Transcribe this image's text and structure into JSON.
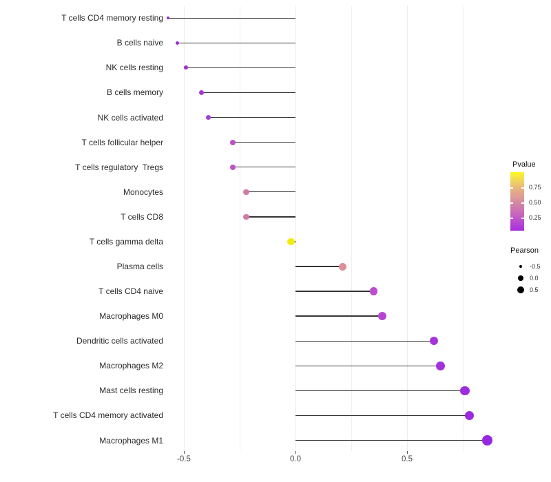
{
  "chart_data": {
    "type": "lollipop",
    "orientation": "horizontal",
    "title": "",
    "xlabel": "",
    "ylabel": "",
    "grid": "vertical-only",
    "x_axis": {
      "tick_labels": [
        "-0.5",
        "0.0",
        "0.5"
      ],
      "tick_values": [
        -0.5,
        0.0,
        0.5
      ],
      "gridline_values": [
        -0.5,
        -0.25,
        0.0,
        0.25,
        0.5,
        0.75
      ],
      "range": [
        -0.6,
        0.95
      ]
    },
    "points": [
      {
        "label": "T cells CD4 memory resting",
        "pearson": -0.57,
        "color": "#8F26CC",
        "size": 4
      },
      {
        "label": "B cells naive",
        "pearson": -0.53,
        "color": "#9A2ED1",
        "size": 5
      },
      {
        "label": "NK cells resting",
        "pearson": -0.49,
        "color": "#9C30D2",
        "size": 6
      },
      {
        "label": "B cells memory",
        "pearson": -0.42,
        "color": "#A63AD3",
        "size": 7
      },
      {
        "label": "NK cells activated",
        "pearson": -0.39,
        "color": "#A93ED2",
        "size": 7.5
      },
      {
        "label": "T cells follicular helper",
        "pearson": -0.28,
        "color": "#BD54C6",
        "size": 8
      },
      {
        "label": "T cells regulatory  Tregs",
        "pearson": -0.28,
        "color": "#BD54C6",
        "size": 8
      },
      {
        "label": "Monocytes",
        "pearson": -0.22,
        "color": "#D07CA7",
        "size": 8.5
      },
      {
        "label": "T cells CD8",
        "pearson": -0.22,
        "color": "#D07CA7",
        "size": 8.5
      },
      {
        "label": "T cells gamma delta",
        "pearson": -0.02,
        "color": "#F2EC11",
        "size": 10.5
      },
      {
        "label": "Plasma cells",
        "pearson": 0.21,
        "color": "#DF8D99",
        "size": 11
      },
      {
        "label": "T cells CD4 naive",
        "pearson": 0.35,
        "color": "#BD4CD0",
        "size": 11.5
      },
      {
        "label": "Macrophages M0",
        "pearson": 0.39,
        "color": "#B846D2",
        "size": 12
      },
      {
        "label": "Dendritic cells activated",
        "pearson": 0.62,
        "color": "#A535DB",
        "size": 12.5
      },
      {
        "label": "Macrophages M2",
        "pearson": 0.65,
        "color": "#A232DC",
        "size": 13
      },
      {
        "label": "Mast cells resting",
        "pearson": 0.76,
        "color": "#9D2CDF",
        "size": 13.5
      },
      {
        "label": "T cells CD4 memory activated",
        "pearson": 0.78,
        "color": "#9C2BE0",
        "size": 13.5
      },
      {
        "label": "Macrophages M1",
        "pearson": 0.86,
        "color": "#9728E2",
        "size": 14.5
      }
    ],
    "legend": {
      "pvalue": {
        "title": "Pvalue",
        "tick_labels": [
          "0.75",
          "0.50",
          "0.25"
        ],
        "gradient_top_to_bottom": [
          "#FBF722",
          "#F1D65B",
          "#E8B27F",
          "#DC9C96",
          "#D080A9",
          "#C766BD",
          "#B84AD1",
          "#A52EDA"
        ]
      },
      "pearson": {
        "title": "Pearson",
        "dot_color": "#000000",
        "items": [
          {
            "label": "-0.5",
            "size": 4
          },
          {
            "label": "0.0",
            "size": 7.5
          },
          {
            "label": "0.5",
            "size": 10
          }
        ]
      }
    },
    "stem_color": "#343434",
    "background_color": "#FFFFFF"
  }
}
